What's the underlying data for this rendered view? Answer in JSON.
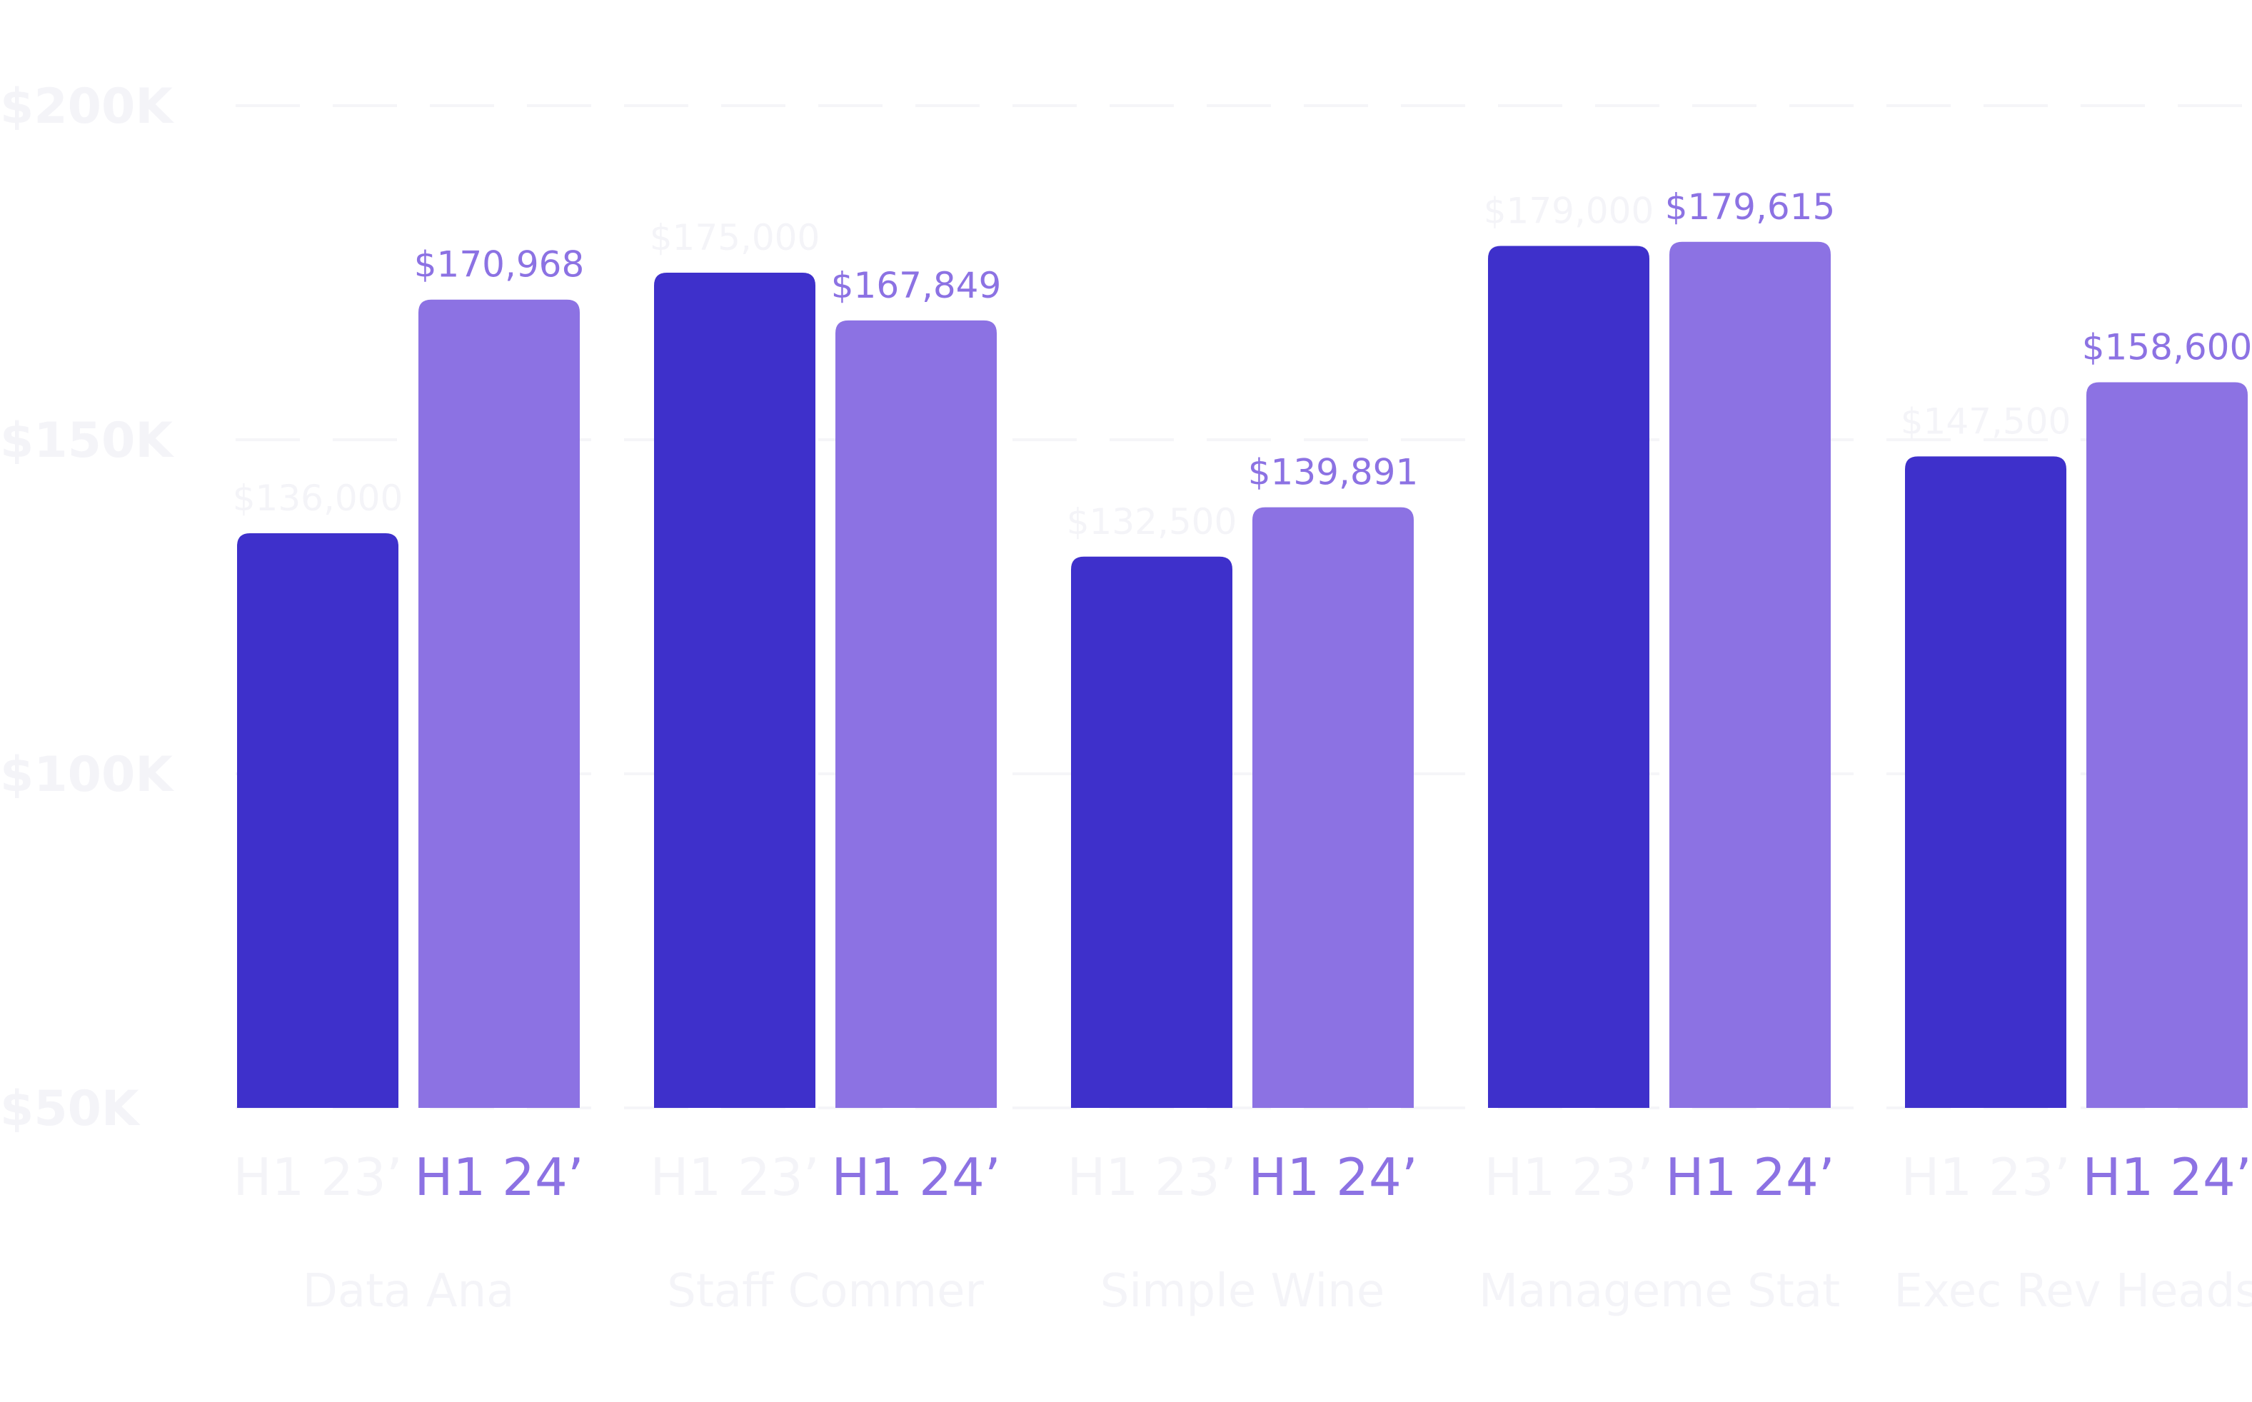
{
  "colors": {
    "series_h1_23": "#3e30cb",
    "series_h1_24": "#8c72e3",
    "faint_text": "#f4f4f8",
    "grid": "#f5f5f8",
    "background": "#ffffff"
  },
  "chart_data": {
    "type": "bar",
    "categories": [
      "Data Ana",
      "Staff Commer",
      "Simple Wine",
      "Manageme Stat",
      "Exec Rev Heads"
    ],
    "series": [
      {
        "period_label": "H1 23’",
        "values": [
          136000,
          175000,
          132500,
          179000,
          147500
        ],
        "value_labels": [
          "$136,000",
          "$175,000",
          "$132,500",
          "$179,000",
          "$147,500"
        ]
      },
      {
        "period_label": "H1 24’",
        "values": [
          170968,
          167849,
          139891,
          179615,
          158600
        ],
        "value_labels": [
          "$170,968",
          "$167,849",
          "$139,891",
          "$179,615",
          "$158,600"
        ]
      }
    ],
    "y_ticks": [
      {
        "value": 200000,
        "label": "$200K"
      },
      {
        "value": 150000,
        "label": "$150K"
      },
      {
        "value": 100000,
        "label": "$100K"
      },
      {
        "value": 50000,
        "label": "$50K"
      }
    ],
    "ylim": [
      50000,
      200000
    ],
    "title": "",
    "xlabel": "",
    "ylabel": "",
    "grid": true
  }
}
